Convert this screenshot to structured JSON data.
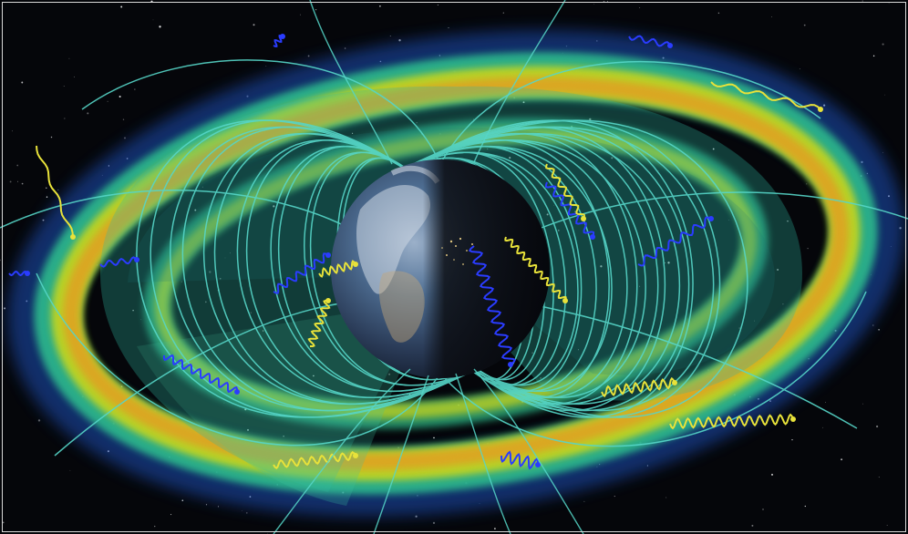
{
  "scene": {
    "subject": "earth-radiation-belts",
    "colors": {
      "space": "#05060a",
      "belt_outer_core": "#e0a020",
      "belt_mid": "#c8d61e",
      "belt_edge": "#2fc38f",
      "belt_glow": "#1d4fb8",
      "slot_region": "#2fb9a4",
      "field_line": "#56d6c8",
      "particle_blue": "#2a3cff",
      "particle_yellow": "#e8e23a",
      "earth_ocean": "#1b3c6a",
      "earth_night": "#101216"
    }
  }
}
